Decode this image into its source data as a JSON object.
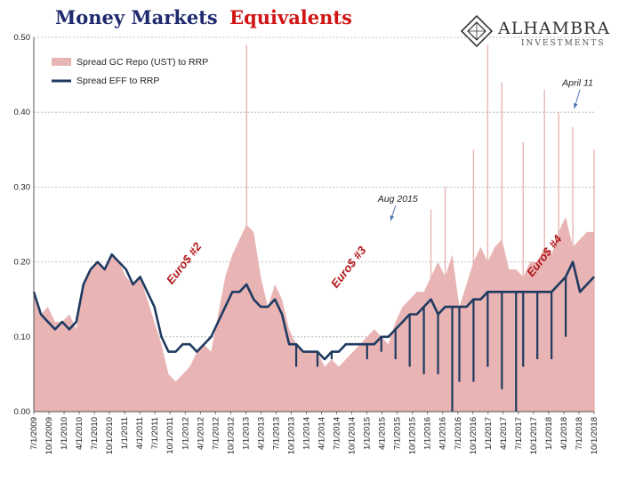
{
  "title": {
    "part1": "Money Markets",
    "part2": "Equivalents"
  },
  "logo": {
    "name": "ALHAMBRA",
    "sub": "INVESTMENTS"
  },
  "colors": {
    "area": "#e8b4b4",
    "line": "#1f3a60",
    "title_blue": "#1f2a6e",
    "title_red": "#d11515",
    "annotation_red": "#b3171b"
  },
  "chart_data": {
    "type": "area",
    "ylim": [
      0,
      0.5
    ],
    "yticks": [
      "0.00",
      "0.10",
      "0.20",
      "0.30",
      "0.40",
      "0.50"
    ],
    "xticks": [
      "7/1/2009",
      "10/1/2009",
      "1/1/2010",
      "4/1/2010",
      "7/1/2010",
      "10/1/2010",
      "1/1/2011",
      "4/1/2011",
      "7/1/2011",
      "10/1/2011",
      "1/1/2012",
      "4/1/2012",
      "7/1/2012",
      "10/1/2012",
      "1/1/2013",
      "4/1/2013",
      "7/1/2013",
      "10/1/2013",
      "1/1/2014",
      "4/1/2014",
      "7/1/2014",
      "10/1/2014",
      "1/1/2015",
      "4/1/2015",
      "7/1/2015",
      "10/1/2015",
      "1/1/2016",
      "4/1/2016",
      "7/1/2016",
      "10/1/2016",
      "1/1/2017",
      "4/1/2017",
      "7/1/2017",
      "10/1/2017",
      "1/1/2018",
      "4/1/2018",
      "7/1/2018",
      "10/1/2018"
    ],
    "grid": true,
    "legend_position": "top-left",
    "series": [
      {
        "name": "Spread GC Repo (UST) to RRP",
        "kind": "area",
        "values": [
          0.16,
          0.13,
          0.14,
          0.12,
          0.12,
          0.13,
          0.11,
          0.17,
          0.19,
          0.2,
          0.19,
          0.21,
          0.2,
          0.18,
          0.17,
          0.18,
          0.15,
          0.12,
          0.09,
          0.05,
          0.04,
          0.05,
          0.06,
          0.08,
          0.09,
          0.08,
          0.13,
          0.18,
          0.21,
          0.23,
          0.25,
          0.24,
          0.18,
          0.14,
          0.17,
          0.15,
          0.11,
          0.09,
          0.08,
          0.08,
          0.08,
          0.06,
          0.07,
          0.06,
          0.07,
          0.08,
          0.09,
          0.1,
          0.11,
          0.1,
          0.09,
          0.12,
          0.14,
          0.15,
          0.16,
          0.16,
          0.18,
          0.2,
          0.18,
          0.21,
          0.14,
          0.17,
          0.2,
          0.22,
          0.2,
          0.22,
          0.23,
          0.19,
          0.19,
          0.18,
          0.2,
          0.2,
          0.22,
          0.21,
          0.24,
          0.26,
          0.22,
          0.23,
          0.24,
          0.24
        ],
        "spikes": [
          {
            "x": 30,
            "y": 0.49
          },
          {
            "x": 56,
            "y": 0.27
          },
          {
            "x": 58,
            "y": 0.3
          },
          {
            "x": 62,
            "y": 0.35
          },
          {
            "x": 64,
            "y": 0.49
          },
          {
            "x": 66,
            "y": 0.44
          },
          {
            "x": 69,
            "y": 0.36
          },
          {
            "x": 72,
            "y": 0.43
          },
          {
            "x": 74,
            "y": 0.4
          },
          {
            "x": 76,
            "y": 0.38
          },
          {
            "x": 79,
            "y": 0.35
          }
        ]
      },
      {
        "name": "Spread EFF to RRP",
        "kind": "line",
        "values": [
          0.16,
          0.13,
          0.12,
          0.11,
          0.12,
          0.11,
          0.12,
          0.17,
          0.19,
          0.2,
          0.19,
          0.21,
          0.2,
          0.19,
          0.17,
          0.18,
          0.16,
          0.14,
          0.1,
          0.08,
          0.08,
          0.09,
          0.09,
          0.08,
          0.09,
          0.1,
          0.12,
          0.14,
          0.16,
          0.16,
          0.17,
          0.15,
          0.14,
          0.14,
          0.15,
          0.13,
          0.09,
          0.09,
          0.08,
          0.08,
          0.08,
          0.07,
          0.08,
          0.08,
          0.09,
          0.09,
          0.09,
          0.09,
          0.09,
          0.1,
          0.1,
          0.11,
          0.12,
          0.13,
          0.13,
          0.14,
          0.15,
          0.13,
          0.14,
          0.14,
          0.14,
          0.14,
          0.15,
          0.15,
          0.16,
          0.16,
          0.16,
          0.16,
          0.16,
          0.16,
          0.16,
          0.16,
          0.16,
          0.16,
          0.17,
          0.18,
          0.2,
          0.16,
          0.17,
          0.18
        ],
        "dips": [
          {
            "x": 37,
            "y": 0.06
          },
          {
            "x": 40,
            "y": 0.06
          },
          {
            "x": 42,
            "y": 0.07
          },
          {
            "x": 47,
            "y": 0.07
          },
          {
            "x": 49,
            "y": 0.08
          },
          {
            "x": 51,
            "y": 0.07
          },
          {
            "x": 53,
            "y": 0.06
          },
          {
            "x": 55,
            "y": 0.05
          },
          {
            "x": 57,
            "y": 0.05
          },
          {
            "x": 59,
            "y": 0.0
          },
          {
            "x": 60,
            "y": 0.04
          },
          {
            "x": 62,
            "y": 0.04
          },
          {
            "x": 64,
            "y": 0.06
          },
          {
            "x": 66,
            "y": 0.03
          },
          {
            "x": 68,
            "y": 0.0
          },
          {
            "x": 69,
            "y": 0.06
          },
          {
            "x": 71,
            "y": 0.07
          },
          {
            "x": 73,
            "y": 0.07
          },
          {
            "x": 75,
            "y": 0.1
          }
        ]
      }
    ],
    "annotations": [
      {
        "text": "April 11",
        "style": "italic",
        "x": 74.5,
        "y": 0.435,
        "arrow_to": {
          "x": 76.2,
          "y": 0.405
        }
      },
      {
        "text": "Aug 2015",
        "style": "italic",
        "x": 48.5,
        "y": 0.28,
        "arrow_to": {
          "x": 50.3,
          "y": 0.255
        }
      },
      {
        "text": "Euro$ #2",
        "style": "red-rotated",
        "x": 21.6,
        "y": 0.195
      },
      {
        "text": "Euro$ #3",
        "style": "red-rotated",
        "x": 44.8,
        "y": 0.19
      },
      {
        "text": "Euro$ #4",
        "style": "red-rotated",
        "x": 72.4,
        "y": 0.205
      }
    ]
  }
}
